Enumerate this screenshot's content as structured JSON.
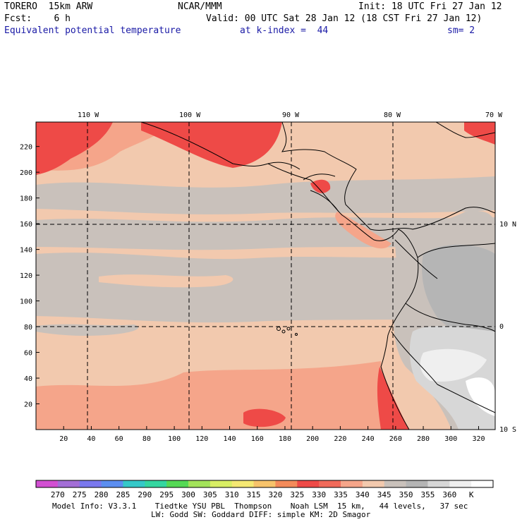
{
  "header": {
    "model": "TORERO  15km ARW",
    "org": "NCAR/MMM",
    "init": "Init: 18 UTC Fri 27 Jan 12",
    "fcst": "Fcst:    6 h",
    "valid": "Valid: 00 UTC Sat 28 Jan 12 (18 CST Fri 27 Jan 12)",
    "field": "Equivalent potential temperature",
    "level": "at k-index =  44",
    "smooth": "sm= 2"
  },
  "axes": {
    "lon_labels": [
      "110 W",
      "100 W",
      "90 W",
      "80 W",
      "70 W"
    ],
    "lat_labels": [
      "10 N",
      "0",
      "10 S"
    ],
    "y_ticks": [
      "220",
      "200",
      "180",
      "160",
      "140",
      "120",
      "100",
      "80",
      "60",
      "40",
      "20"
    ],
    "x_ticks": [
      "20",
      "40",
      "60",
      "80",
      "100",
      "120",
      "140",
      "160",
      "180",
      "200",
      "220",
      "240",
      "260",
      "280",
      "300",
      "320"
    ]
  },
  "colorbar": {
    "labels": [
      "270",
      "275",
      "280",
      "285",
      "290",
      "295",
      "300",
      "305",
      "310",
      "315",
      "320",
      "325",
      "330",
      "335",
      "340",
      "345",
      "350",
      "355",
      "360",
      "K"
    ],
    "colors": [
      "#d24fd2",
      "#a36ed6",
      "#7a78ee",
      "#5b8ef0",
      "#35c8c8",
      "#35d6a0",
      "#55d955",
      "#a3e35a",
      "#d9ee64",
      "#f5e873",
      "#f7c36b",
      "#f48b5a",
      "#ee4a47",
      "#f06a5a",
      "#f5a58a",
      "#f2c9ae",
      "#c9c1bb",
      "#b5b5b5",
      "#d7d7d7",
      "#efefef",
      "#ffffff"
    ]
  },
  "footer": {
    "line1": "Model Info: V3.3.1    Tiedtke YSU PBL  Thompson    Noah LSM  15 km,   44 levels,   37 sec",
    "line2": "LW: Godd SW: Goddard DIFF: simple KM: 2D Smagor"
  }
}
